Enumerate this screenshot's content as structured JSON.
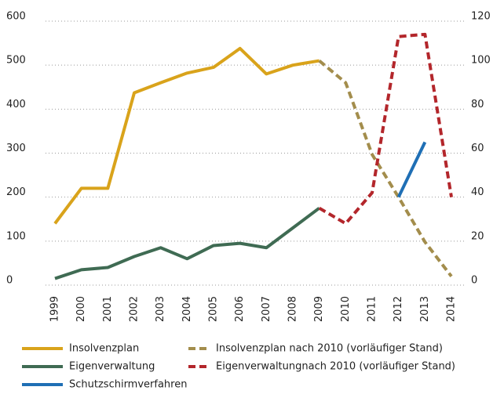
{
  "chart_data": {
    "type": "line",
    "categories": [
      "1999",
      "2000",
      "2001",
      "2002",
      "2003",
      "2004",
      "2005",
      "2006",
      "2007",
      "2008",
      "2009",
      "2010",
      "2011",
      "2012",
      "2013",
      "2014"
    ],
    "ylim": [
      0,
      600
    ],
    "yticks": [
      0,
      100,
      200,
      300,
      400,
      500,
      600
    ],
    "y2lim": [
      0,
      120
    ],
    "y2ticks": [
      0,
      20,
      40,
      60,
      80,
      100,
      120
    ],
    "grid": true,
    "series": [
      {
        "name": "Insolvenzplan",
        "color": "#d9a31b",
        "dashed": false,
        "axis": "y",
        "values": [
          140,
          220,
          220,
          437,
          460,
          482,
          495,
          538,
          480,
          500,
          510,
          null,
          null,
          null,
          null,
          null
        ]
      },
      {
        "name": "Insolvenzplan nach 2010 (vorläufiger Stand)",
        "color": "#a38d4c",
        "dashed": true,
        "axis": "y",
        "values": [
          null,
          null,
          null,
          null,
          null,
          null,
          null,
          null,
          null,
          null,
          510,
          460,
          297,
          200,
          98,
          20
        ]
      },
      {
        "name": "Eigenverwaltung",
        "color": "#3f6b53",
        "dashed": false,
        "axis": "y",
        "values": [
          15,
          35,
          40,
          65,
          85,
          60,
          90,
          95,
          85,
          130,
          175,
          null,
          null,
          null,
          null,
          null
        ]
      },
      {
        "name": "Eigenverwaltungnach 2010 (vorläufiger Stand)",
        "color": "#b3262b",
        "dashed": true,
        "axis": "y2",
        "values": [
          null,
          null,
          null,
          null,
          null,
          null,
          null,
          null,
          null,
          null,
          35,
          28,
          42,
          113,
          114,
          40
        ]
      },
      {
        "name": "Schutzschirmverfahren",
        "color": "#1f6fb5",
        "dashed": false,
        "axis": "y2",
        "values": [
          null,
          null,
          null,
          null,
          null,
          null,
          null,
          null,
          null,
          null,
          null,
          null,
          null,
          40,
          65,
          null
        ]
      }
    ]
  }
}
